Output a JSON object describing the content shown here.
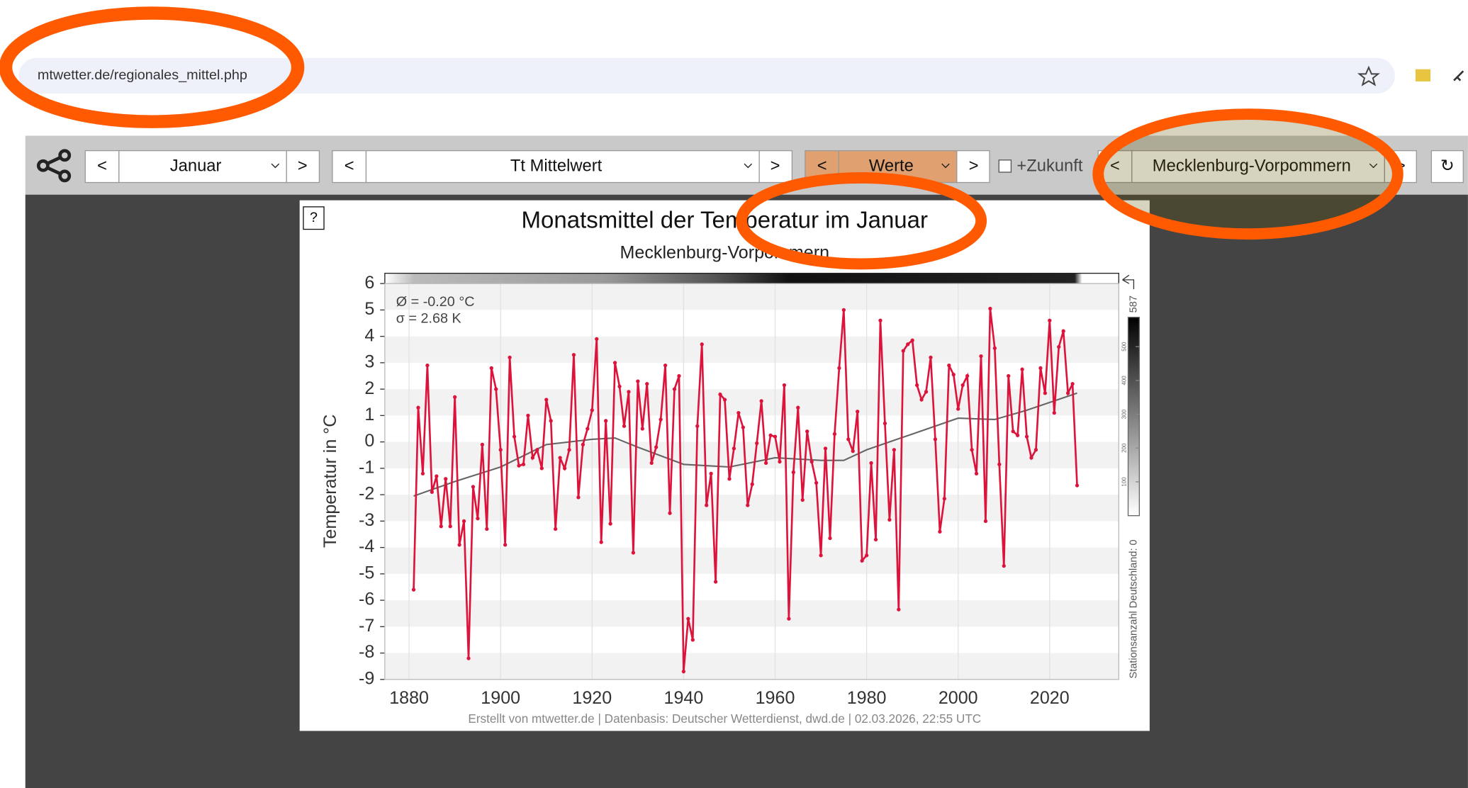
{
  "browser": {
    "url": "mtwetter.de/regionales_mittel.php"
  },
  "toolbar": {
    "prev": "<",
    "next": ">",
    "month": "Januar",
    "parameter": "Tt Mittelwert",
    "mode": "Werte",
    "future": "+Zukunft",
    "region": "Mecklenburg-Vorpommern",
    "reload": "↻"
  },
  "chart_data": {
    "type": "line",
    "help": "?",
    "title": "Monatsmittel der Temperatur im Januar",
    "subtitle": "Mecklenburg-Vorpommern",
    "y_label": "Temperatur in °C",
    "annotations": [
      "Ø = -0.20 °C",
      "σ = 2.68 K"
    ],
    "footer": "Erstellt von mtwetter.de | Datenbasis: Deutscher Wetterdienst, dwd.de | 02.03.2026, 22:55 UTC",
    "xlim": [
      1874.7,
      2035.1
    ],
    "xticks": [
      1880,
      1900,
      1920,
      1940,
      1960,
      1980,
      2000,
      2020
    ],
    "ylim": [
      -9,
      6
    ],
    "yticks": [
      -9,
      -8,
      -7,
      -6,
      -5,
      -4,
      -3,
      -2,
      -1,
      0,
      1,
      2,
      3,
      4,
      5,
      6
    ],
    "grid": true,
    "x": [
      1881,
      1882,
      1883,
      1884,
      1885,
      1886,
      1887,
      1888,
      1889,
      1890,
      1891,
      1892,
      1893,
      1894,
      1895,
      1896,
      1897,
      1898,
      1899,
      1900,
      1901,
      1902,
      1903,
      1904,
      1905,
      1906,
      1907,
      1908,
      1909,
      1910,
      1911,
      1912,
      1913,
      1914,
      1915,
      1916,
      1917,
      1918,
      1919,
      1920,
      1921,
      1922,
      1923,
      1924,
      1925,
      1926,
      1927,
      1928,
      1929,
      1930,
      1931,
      1932,
      1933,
      1934,
      1935,
      1936,
      1937,
      1938,
      1939,
      1940,
      1941,
      1942,
      1943,
      1944,
      1945,
      1946,
      1947,
      1948,
      1949,
      1950,
      1951,
      1952,
      1953,
      1954,
      1955,
      1956,
      1957,
      1958,
      1959,
      1960,
      1961,
      1962,
      1963,
      1964,
      1965,
      1966,
      1967,
      1968,
      1969,
      1970,
      1971,
      1972,
      1973,
      1974,
      1975,
      1976,
      1977,
      1978,
      1979,
      1980,
      1981,
      1982,
      1983,
      1984,
      1985,
      1986,
      1987,
      1988,
      1989,
      1990,
      1991,
      1992,
      1993,
      1994,
      1995,
      1996,
      1997,
      1998,
      1999,
      2000,
      2001,
      2002,
      2003,
      2004,
      2005,
      2006,
      2007,
      2008,
      2009,
      2010,
      2011,
      2012,
      2013,
      2014,
      2015,
      2016,
      2017,
      2018,
      2019,
      2020,
      2021,
      2022,
      2023,
      2024,
      2025,
      2026
    ],
    "series": [
      {
        "color": "#dc143c",
        "values": [
          -5.6,
          1.3,
          -1.2,
          2.9,
          -1.9,
          -1.3,
          -3.2,
          -1.4,
          -3.2,
          1.7,
          -3.9,
          -3.0,
          -8.2,
          -1.7,
          -2.9,
          -0.1,
          -3.3,
          2.8,
          2.0,
          -0.3,
          -3.9,
          3.2,
          0.2,
          -0.9,
          -0.85,
          1.0,
          -0.6,
          -0.3,
          -1.0,
          1.6,
          0.8,
          -3.3,
          -0.6,
          -1.0,
          -0.3,
          3.3,
          -2.1,
          -0.1,
          0.5,
          1.2,
          3.9,
          -3.8,
          0.8,
          -3.1,
          3.0,
          2.1,
          0.6,
          1.9,
          -4.2,
          2.3,
          0.5,
          2.2,
          -0.8,
          -0.2,
          0.85,
          2.9,
          -2.7,
          2.0,
          2.5,
          -8.7,
          -6.7,
          -7.5,
          0.6,
          3.7,
          -2.4,
          -1.2,
          -5.3,
          1.8,
          1.6,
          -1.4,
          -0.25,
          1.1,
          0.55,
          -2.4,
          -1.6,
          -0.05,
          1.55,
          -0.8,
          0.25,
          0.2,
          -0.75,
          2.15,
          -6.7,
          -1.15,
          1.3,
          -2.2,
          0.4,
          -0.75,
          -1.55,
          -4.3,
          -0.25,
          -3.65,
          0.3,
          2.8,
          5.0,
          0.1,
          -0.35,
          1.15,
          -4.5,
          -4.3,
          -0.8,
          -3.7,
          4.6,
          0.7,
          -2.95,
          -0.3,
          -6.35,
          3.45,
          3.7,
          3.85,
          2.15,
          1.6,
          1.9,
          3.2,
          0.1,
          -3.4,
          -2.15,
          2.9,
          2.55,
          1.25,
          2.15,
          2.5,
          -0.3,
          -1.2,
          3.25,
          -3.0,
          5.05,
          3.55,
          -0.85,
          -4.7,
          2.5,
          0.4,
          0.25,
          2.75,
          0.2,
          -0.6,
          -0.3,
          2.8,
          1.85,
          4.6,
          1.1,
          3.6,
          4.2,
          1.85,
          2.2,
          -1.65
        ]
      }
    ],
    "trend": {
      "color": "#666666",
      "x": [
        1881,
        1890,
        1900,
        1910,
        1920,
        1925,
        1930,
        1940,
        1950,
        1960,
        1970,
        1975,
        1980,
        1990,
        2000,
        2008,
        2015,
        2026
      ],
      "values": [
        -2.05,
        -1.5,
        -0.95,
        -0.1,
        0.1,
        0.15,
        -0.2,
        -0.85,
        -0.95,
        -0.6,
        -0.7,
        -0.7,
        -0.3,
        0.3,
        0.9,
        0.85,
        1.2,
        1.85
      ]
    },
    "colorbar": {
      "label": "Stationsanzahl Deutschland: 0",
      "lim": [
        0,
        587
      ],
      "ticks": [
        100,
        200,
        300,
        400,
        500
      ]
    }
  }
}
